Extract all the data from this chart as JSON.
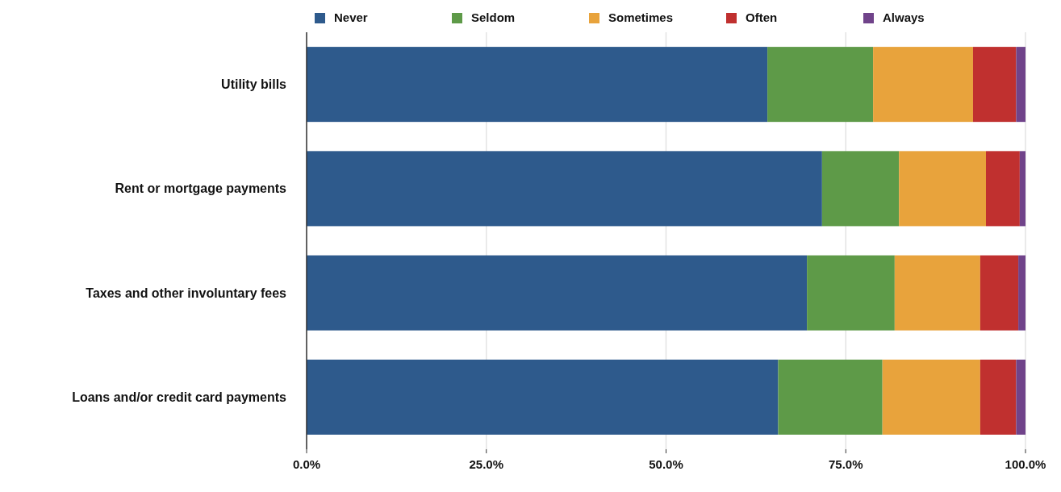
{
  "chart_data": {
    "type": "bar",
    "orientation": "horizontal",
    "stacked": true,
    "categories": [
      "Utility bills",
      "Rent or mortgage payments",
      "Taxes and other involuntary fees",
      "Loans and/or credit card payments"
    ],
    "series": [
      {
        "name": "Never",
        "color": "#2e5a8c",
        "values": [
          64.1,
          71.7,
          69.6,
          65.6
        ]
      },
      {
        "name": "Seldom",
        "color": "#5e9a48",
        "values": [
          14.7,
          10.7,
          12.2,
          14.5
        ]
      },
      {
        "name": "Sometimes",
        "color": "#e8a33c",
        "values": [
          13.9,
          12.1,
          11.9,
          13.6
        ]
      },
      {
        "name": "Often",
        "color": "#c0302f",
        "values": [
          6.0,
          4.7,
          5.3,
          5.0
        ]
      },
      {
        "name": "Always",
        "color": "#70438a",
        "values": [
          1.3,
          0.8,
          1.0,
          1.3
        ]
      }
    ],
    "xlim": [
      0,
      100
    ],
    "xticks": [
      {
        "value": 0,
        "label": "0.0%"
      },
      {
        "value": 25,
        "label": "25.0%"
      },
      {
        "value": 50,
        "label": "50.0%"
      },
      {
        "value": 75,
        "label": "75.0%"
      },
      {
        "value": 100,
        "label": "100.0%"
      }
    ],
    "grid": "x",
    "legend": "top"
  }
}
